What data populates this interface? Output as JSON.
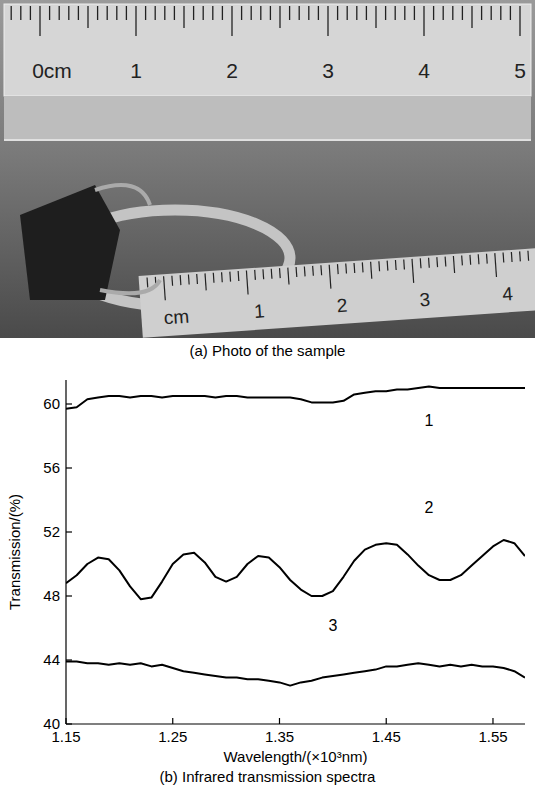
{
  "panel_a": {
    "title": "(a) Photo of the sample",
    "ruler_top_labels": [
      "0cm",
      "1",
      "2",
      "3",
      "4",
      "5"
    ],
    "ruler_bottom_labels": [
      "cm",
      "1",
      "2",
      "3",
      "4"
    ]
  },
  "chart_data": {
    "type": "line",
    "title": "(b) Infrared transmission spectra",
    "x_label": "Wavelength/(×10³nm)",
    "y_label": "Transmission/(%)",
    "x": [
      1.15,
      1.16,
      1.17,
      1.18,
      1.19,
      1.2,
      1.21,
      1.22,
      1.23,
      1.24,
      1.25,
      1.26,
      1.27,
      1.28,
      1.29,
      1.3,
      1.31,
      1.32,
      1.33,
      1.34,
      1.35,
      1.36,
      1.37,
      1.38,
      1.39,
      1.4,
      1.41,
      1.42,
      1.43,
      1.44,
      1.45,
      1.46,
      1.47,
      1.48,
      1.49,
      1.5,
      1.51,
      1.52,
      1.53,
      1.54,
      1.55,
      1.56,
      1.57,
      1.58
    ],
    "xlim": [
      1.15,
      1.58
    ],
    "xticks": [
      1.15,
      1.25,
      1.35,
      1.45,
      1.55
    ],
    "ylim": [
      40,
      61.5
    ],
    "yticks": [
      40,
      44,
      48,
      52,
      56,
      60
    ],
    "grid": false,
    "color": "#000000",
    "series": [
      {
        "name": "1",
        "values": [
          59.7,
          59.8,
          60.3,
          60.4,
          60.5,
          60.5,
          60.4,
          60.5,
          60.5,
          60.4,
          60.5,
          60.5,
          60.5,
          60.5,
          60.4,
          60.5,
          60.5,
          60.4,
          60.4,
          60.4,
          60.4,
          60.4,
          60.3,
          60.1,
          60.1,
          60.1,
          60.2,
          60.6,
          60.7,
          60.8,
          60.8,
          60.9,
          60.9,
          61.0,
          61.1,
          61.0,
          61.0,
          61.0,
          61.0,
          61.0,
          61.0,
          61.0,
          61.0,
          61.0
        ]
      },
      {
        "name": "2",
        "values": [
          48.8,
          49.3,
          50.0,
          50.4,
          50.3,
          49.6,
          48.6,
          47.8,
          47.9,
          48.9,
          50.0,
          50.6,
          50.7,
          50.1,
          49.2,
          48.9,
          49.2,
          50.0,
          50.5,
          50.4,
          49.8,
          49.0,
          48.4,
          48.0,
          48.0,
          48.3,
          49.2,
          50.2,
          50.9,
          51.2,
          51.3,
          51.2,
          50.6,
          49.9,
          49.3,
          49.0,
          49.0,
          49.3,
          49.9,
          50.5,
          51.1,
          51.5,
          51.3,
          50.5
        ]
      },
      {
        "name": "3",
        "values": [
          43.9,
          43.9,
          43.8,
          43.8,
          43.7,
          43.8,
          43.7,
          43.8,
          43.6,
          43.7,
          43.5,
          43.3,
          43.2,
          43.1,
          43.0,
          42.9,
          42.9,
          42.8,
          42.8,
          42.7,
          42.6,
          42.4,
          42.6,
          42.7,
          42.9,
          43.0,
          43.1,
          43.2,
          43.3,
          43.4,
          43.6,
          43.6,
          43.7,
          43.8,
          43.7,
          43.6,
          43.7,
          43.6,
          43.7,
          43.6,
          43.6,
          43.5,
          43.3,
          42.9
        ]
      }
    ]
  }
}
